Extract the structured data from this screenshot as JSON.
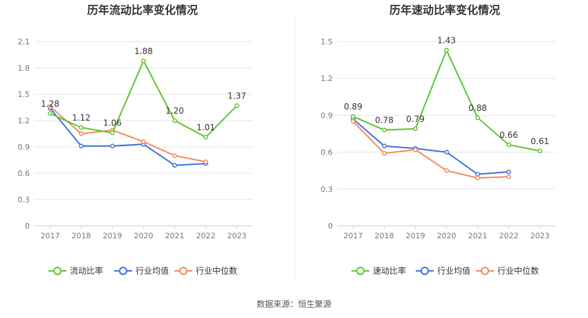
{
  "source_label": "数据来源：恒生聚源",
  "colors": {
    "company": "#5ac531",
    "industry_avg": "#3d72d8",
    "industry_median": "#f08a5d",
    "axis_text": "#777777",
    "grid": "#e6e6e6",
    "title": "#333333"
  },
  "chart_data": [
    {
      "type": "line",
      "title": "历年流动比率变化情况",
      "categories": [
        "2017",
        "2018",
        "2019",
        "2020",
        "2021",
        "2022",
        "2023"
      ],
      "ylim": [
        0,
        2.1
      ],
      "yticks": [
        "0",
        "0.3",
        "0.6",
        "0.9",
        "1.2",
        "1.5",
        "1.8",
        "2.1"
      ],
      "grid": true,
      "legend_position": "bottom",
      "series": [
        {
          "name": "流动比率",
          "color_key": "company",
          "values": [
            1.28,
            1.12,
            1.06,
            1.88,
            1.2,
            1.01,
            1.37
          ],
          "labels": [
            "1.28",
            "1.12",
            "1.06",
            "1.88",
            "1.20",
            "1.01",
            "1.37"
          ]
        },
        {
          "name": "行业均值",
          "color_key": "industry_avg",
          "values": [
            1.34,
            0.91,
            0.91,
            0.93,
            0.69,
            0.71,
            null
          ]
        },
        {
          "name": "行业中位数",
          "color_key": "industry_median",
          "values": [
            1.36,
            1.05,
            1.09,
            0.96,
            0.8,
            0.73,
            null
          ]
        }
      ]
    },
    {
      "type": "line",
      "title": "历年速动比率变化情况",
      "categories": [
        "2017",
        "2018",
        "2019",
        "2020",
        "2021",
        "2022",
        "2023"
      ],
      "ylim": [
        0,
        1.5
      ],
      "yticks": [
        "0",
        "0.3",
        "0.6",
        "0.9",
        "1.2",
        "1.5"
      ],
      "grid": true,
      "legend_position": "bottom",
      "series": [
        {
          "name": "速动比率",
          "color_key": "company",
          "values": [
            0.89,
            0.78,
            0.79,
            1.43,
            0.88,
            0.66,
            0.61
          ],
          "labels": [
            "0.89",
            "0.78",
            "0.79",
            "1.43",
            "0.88",
            "0.66",
            "0.61"
          ]
        },
        {
          "name": "行业均值",
          "color_key": "industry_avg",
          "values": [
            0.87,
            0.65,
            0.63,
            0.6,
            0.42,
            0.44,
            null
          ]
        },
        {
          "name": "行业中位数",
          "color_key": "industry_median",
          "values": [
            0.85,
            0.59,
            0.62,
            0.45,
            0.39,
            0.4,
            null
          ]
        }
      ]
    }
  ]
}
